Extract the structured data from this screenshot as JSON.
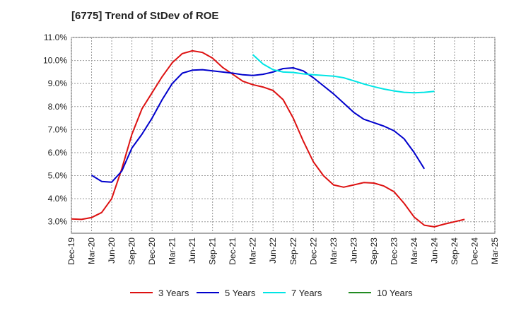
{
  "chart_data": {
    "type": "line",
    "title": "[6775]  Trend of StDev of ROE",
    "xlabel": "",
    "ylabel": "",
    "x_ticks": [
      "Dec-19",
      "Mar-20",
      "Jun-20",
      "Sep-20",
      "Dec-20",
      "Mar-21",
      "Jun-21",
      "Sep-21",
      "Dec-21",
      "Mar-22",
      "Jun-22",
      "Sep-22",
      "Dec-22",
      "Mar-23",
      "Jun-23",
      "Sep-23",
      "Dec-23",
      "Mar-24",
      "Jun-24",
      "Sep-24",
      "Dec-24",
      "Mar-25"
    ],
    "y_ticks": [
      "3.0%",
      "4.0%",
      "5.0%",
      "6.0%",
      "7.0%",
      "8.0%",
      "9.0%",
      "10.0%",
      "11.0%"
    ],
    "ylim": [
      2.5,
      11.0
    ],
    "grid": true,
    "legend_position": "bottom",
    "series": [
      {
        "name": "3 Years",
        "color": "#dd1111",
        "points": [
          [
            0,
            3.12
          ],
          [
            0.5,
            3.1
          ],
          [
            1,
            3.18
          ],
          [
            1.5,
            3.4
          ],
          [
            2,
            4.0
          ],
          [
            2.5,
            5.3
          ],
          [
            3,
            6.8
          ],
          [
            3.5,
            7.9
          ],
          [
            4,
            8.6
          ],
          [
            4.5,
            9.3
          ],
          [
            5,
            9.9
          ],
          [
            5.5,
            10.3
          ],
          [
            6,
            10.42
          ],
          [
            6.5,
            10.35
          ],
          [
            7,
            10.1
          ],
          [
            7.5,
            9.7
          ],
          [
            8,
            9.4
          ],
          [
            8.5,
            9.1
          ],
          [
            9,
            8.95
          ],
          [
            9.5,
            8.85
          ],
          [
            10,
            8.7
          ],
          [
            10.5,
            8.3
          ],
          [
            11,
            7.5
          ],
          [
            11.5,
            6.5
          ],
          [
            12,
            5.6
          ],
          [
            12.5,
            5.0
          ],
          [
            13,
            4.6
          ],
          [
            13.5,
            4.5
          ],
          [
            14,
            4.6
          ],
          [
            14.5,
            4.7
          ],
          [
            15,
            4.68
          ],
          [
            15.5,
            4.55
          ],
          [
            16,
            4.3
          ],
          [
            16.5,
            3.8
          ],
          [
            17,
            3.2
          ],
          [
            17.5,
            2.85
          ],
          [
            18,
            2.78
          ],
          [
            18.5,
            2.9
          ],
          [
            19,
            3.0
          ],
          [
            19.5,
            3.1
          ]
        ]
      },
      {
        "name": "5 Years",
        "color": "#0000cc",
        "points": [
          [
            1,
            5.02
          ],
          [
            1.5,
            4.75
          ],
          [
            2,
            4.72
          ],
          [
            2.5,
            5.2
          ],
          [
            3,
            6.2
          ],
          [
            3.5,
            6.8
          ],
          [
            4,
            7.5
          ],
          [
            4.5,
            8.3
          ],
          [
            5,
            9.0
          ],
          [
            5.5,
            9.45
          ],
          [
            6,
            9.58
          ],
          [
            6.5,
            9.6
          ],
          [
            7,
            9.55
          ],
          [
            7.5,
            9.5
          ],
          [
            8,
            9.45
          ],
          [
            8.5,
            9.38
          ],
          [
            9,
            9.35
          ],
          [
            9.5,
            9.4
          ],
          [
            10,
            9.5
          ],
          [
            10.5,
            9.65
          ],
          [
            11,
            9.68
          ],
          [
            11.5,
            9.55
          ],
          [
            12,
            9.25
          ],
          [
            12.5,
            8.9
          ],
          [
            13,
            8.55
          ],
          [
            13.5,
            8.15
          ],
          [
            14,
            7.75
          ],
          [
            14.5,
            7.45
          ],
          [
            15,
            7.3
          ],
          [
            15.5,
            7.15
          ],
          [
            16,
            6.95
          ],
          [
            16.5,
            6.6
          ],
          [
            17,
            6.0
          ],
          [
            17.5,
            5.3
          ]
        ]
      },
      {
        "name": "7 Years",
        "color": "#00e5e5",
        "points": [
          [
            9,
            10.25
          ],
          [
            9.5,
            9.85
          ],
          [
            10,
            9.6
          ],
          [
            10.5,
            9.5
          ],
          [
            11,
            9.48
          ],
          [
            11.5,
            9.42
          ],
          [
            12,
            9.38
          ],
          [
            12.5,
            9.35
          ],
          [
            13,
            9.32
          ],
          [
            13.5,
            9.25
          ],
          [
            14,
            9.12
          ],
          [
            14.5,
            8.98
          ],
          [
            15,
            8.86
          ],
          [
            15.5,
            8.76
          ],
          [
            16,
            8.68
          ],
          [
            16.5,
            8.62
          ],
          [
            17,
            8.6
          ],
          [
            17.5,
            8.62
          ],
          [
            18,
            8.66
          ]
        ]
      },
      {
        "name": "10 Years",
        "color": "#228b22",
        "points": []
      }
    ]
  }
}
